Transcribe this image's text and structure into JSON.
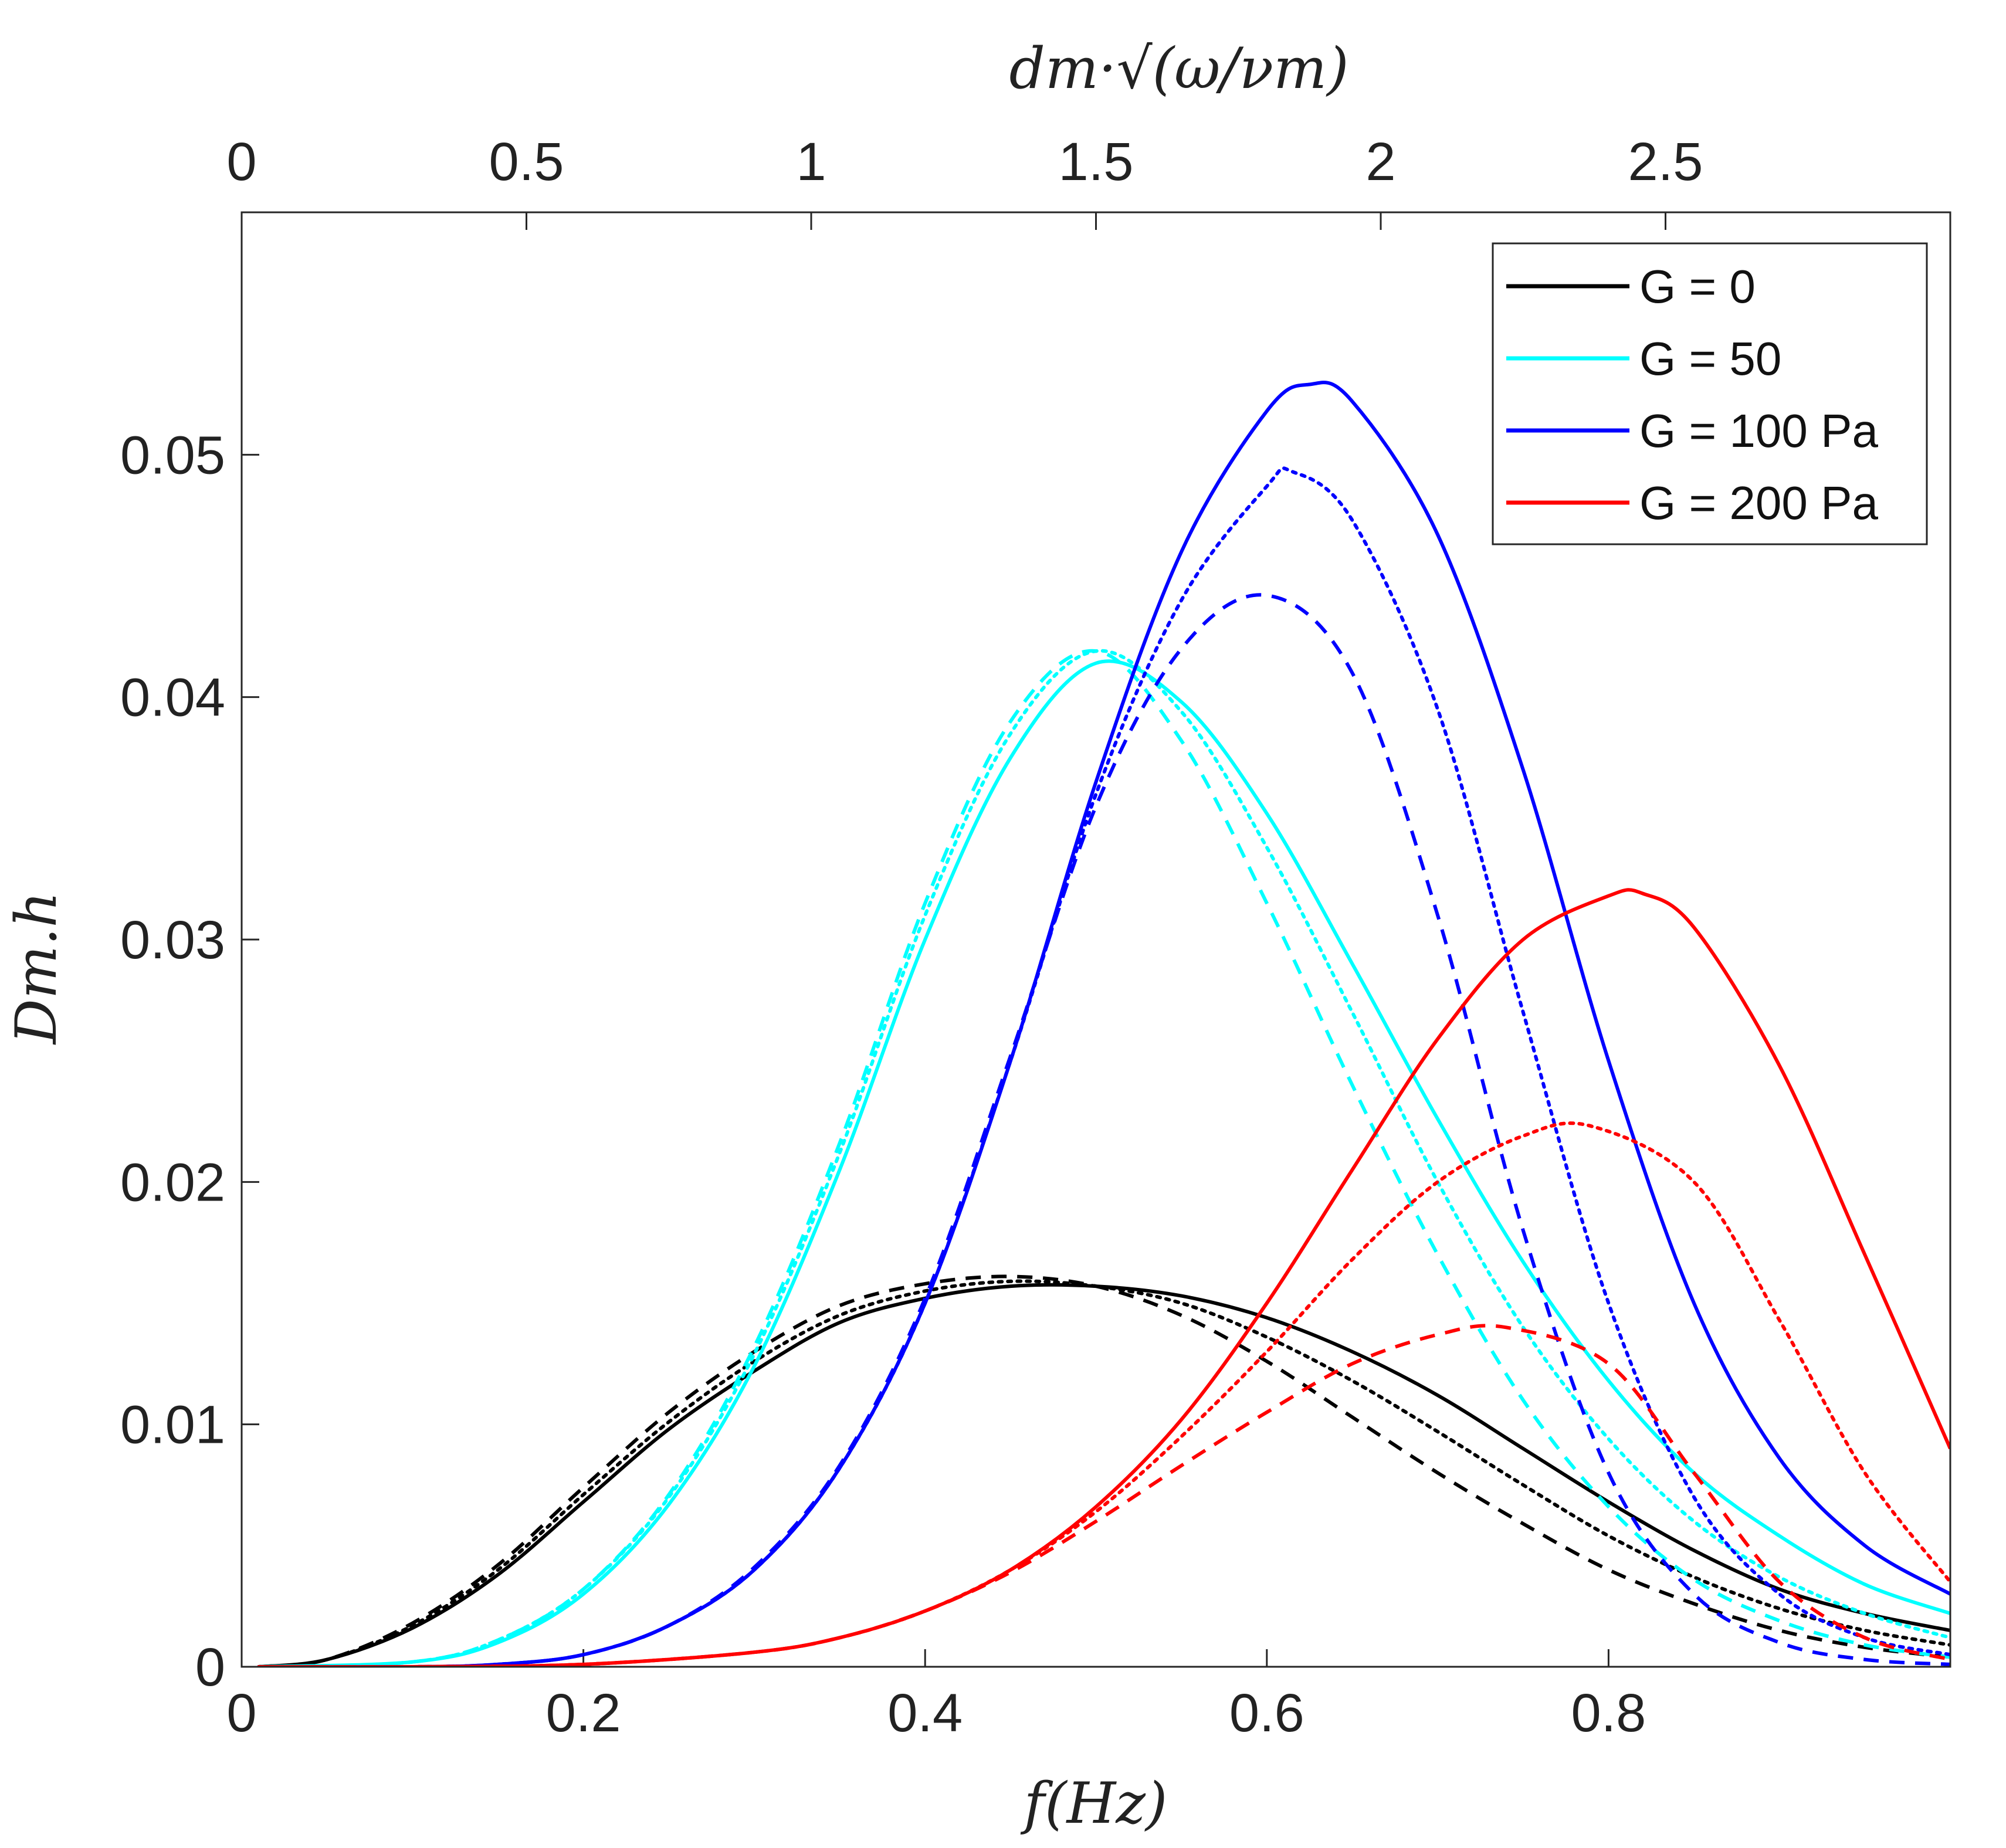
{
  "chart_data": {
    "type": "line",
    "xlabel": "f(Hz)",
    "ylabel": "Dm.h",
    "top_xlabel": "dm·√(ω/νm)",
    "xlim": [
      0,
      1.0
    ],
    "ylim": [
      0,
      0.06
    ],
    "top_xlim": [
      0,
      3.0
    ],
    "x_ticks": [
      "0",
      "0.2",
      "0.4",
      "0.6",
      "0.8"
    ],
    "x_tick_values": [
      0,
      0.2,
      0.4,
      0.6,
      0.8
    ],
    "y_ticks": [
      "0",
      "0.01",
      "0.02",
      "0.03",
      "0.04",
      "0.05"
    ],
    "y_tick_values": [
      0,
      0.01,
      0.02,
      0.03,
      0.04,
      0.05
    ],
    "top_x_ticks": [
      "0",
      "0.5",
      "1",
      "1.5",
      "2",
      "2.5"
    ],
    "top_x_tick_values": [
      0,
      0.5,
      1,
      1.5,
      2,
      2.5
    ],
    "legend": {
      "position": "top-right",
      "entries": [
        {
          "label": "G = 0",
          "color": "#000000"
        },
        {
          "label": "G = 50",
          "color": "#00ffff"
        },
        {
          "label": "G = 100 Pa",
          "color": "#0000ff"
        },
        {
          "label": "G = 200 Pa",
          "color": "#ff0000"
        }
      ]
    },
    "series": [
      {
        "name": "G = 0 solid",
        "color": "#000000",
        "style": "solid",
        "x": [
          0.01,
          0.05,
          0.1,
          0.15,
          0.2,
          0.25,
          0.3,
          0.35,
          0.4,
          0.45,
          0.5,
          0.55,
          0.6,
          0.65,
          0.7,
          0.75,
          0.8,
          0.85,
          0.9,
          0.95,
          1.0
        ],
        "y": [
          0,
          0.0003,
          0.0016,
          0.0038,
          0.0068,
          0.0098,
          0.0122,
          0.0142,
          0.0152,
          0.0157,
          0.0157,
          0.0153,
          0.0144,
          0.013,
          0.0112,
          0.009,
          0.0068,
          0.0048,
          0.0032,
          0.0022,
          0.0015
        ]
      },
      {
        "name": "G = 0 dotted",
        "color": "#000000",
        "style": "dotted",
        "x": [
          0.01,
          0.05,
          0.1,
          0.15,
          0.2,
          0.25,
          0.3,
          0.35,
          0.4,
          0.45,
          0.5,
          0.55,
          0.6,
          0.65,
          0.7,
          0.75,
          0.8,
          0.85,
          0.9,
          0.95,
          1.0
        ],
        "y": [
          0,
          0.0003,
          0.0017,
          0.004,
          0.0071,
          0.0101,
          0.0126,
          0.0145,
          0.0155,
          0.0159,
          0.0157,
          0.015,
          0.0136,
          0.0118,
          0.0097,
          0.0075,
          0.0054,
          0.0037,
          0.0024,
          0.0015,
          0.0009
        ]
      },
      {
        "name": "G = 0 dashed",
        "color": "#000000",
        "style": "dashed",
        "x": [
          0.01,
          0.05,
          0.1,
          0.15,
          0.2,
          0.25,
          0.3,
          0.35,
          0.4,
          0.45,
          0.5,
          0.55,
          0.6,
          0.65,
          0.7,
          0.75,
          0.8,
          0.85,
          0.9,
          0.95,
          1.0
        ],
        "y": [
          0,
          0.0003,
          0.0018,
          0.0042,
          0.0074,
          0.0105,
          0.013,
          0.0149,
          0.0158,
          0.0161,
          0.0157,
          0.0145,
          0.0126,
          0.0103,
          0.008,
          0.0059,
          0.004,
          0.0026,
          0.0015,
          0.0008,
          0.0004
        ]
      },
      {
        "name": "G = 50 solid",
        "color": "#00ffff",
        "style": "solid",
        "x": [
          0.01,
          0.1,
          0.15,
          0.2,
          0.25,
          0.3,
          0.35,
          0.4,
          0.45,
          0.5,
          0.55,
          0.6,
          0.65,
          0.7,
          0.75,
          0.8,
          0.85,
          0.9,
          0.95,
          1.0
        ],
        "y": [
          0,
          0.0002,
          0.001,
          0.003,
          0.0067,
          0.0124,
          0.0205,
          0.03,
          0.0375,
          0.0414,
          0.0398,
          0.0352,
          0.029,
          0.0226,
          0.0167,
          0.0118,
          0.008,
          0.0054,
          0.0034,
          0.0022
        ]
      },
      {
        "name": "G = 50 dotted",
        "color": "#00ffff",
        "style": "dotted",
        "x": [
          0.01,
          0.1,
          0.15,
          0.2,
          0.25,
          0.3,
          0.35,
          0.4,
          0.45,
          0.5,
          0.55,
          0.6,
          0.65,
          0.7,
          0.75,
          0.8,
          0.85,
          0.9,
          0.95,
          1.0
        ],
        "y": [
          0,
          0.0002,
          0.0011,
          0.0032,
          0.007,
          0.0129,
          0.0212,
          0.031,
          0.0385,
          0.0419,
          0.0394,
          0.0338,
          0.027,
          0.02,
          0.014,
          0.0094,
          0.006,
          0.0037,
          0.0022,
          0.0012
        ]
      },
      {
        "name": "G = 50 dashed",
        "color": "#00ffff",
        "style": "dashed",
        "x": [
          0.01,
          0.1,
          0.15,
          0.2,
          0.25,
          0.3,
          0.35,
          0.4,
          0.45,
          0.5,
          0.55,
          0.6,
          0.65,
          0.7,
          0.75,
          0.8,
          0.85,
          0.9,
          0.95,
          1.0
        ],
        "y": [
          0,
          0.0002,
          0.0011,
          0.0032,
          0.0071,
          0.0132,
          0.0216,
          0.0315,
          0.039,
          0.0419,
          0.0382,
          0.0315,
          0.024,
          0.017,
          0.011,
          0.0066,
          0.0036,
          0.0019,
          0.0009,
          0.0004
        ]
      },
      {
        "name": "G = 100 Pa solid",
        "color": "#0000ff",
        "style": "solid",
        "x": [
          0.01,
          0.1,
          0.15,
          0.2,
          0.25,
          0.3,
          0.35,
          0.4,
          0.45,
          0.5,
          0.55,
          0.6,
          0.625,
          0.65,
          0.7,
          0.75,
          0.8,
          0.85,
          0.9,
          0.95,
          1.0
        ],
        "y": [
          0,
          0,
          0.0001,
          0.0005,
          0.0017,
          0.004,
          0.0082,
          0.015,
          0.025,
          0.0365,
          0.046,
          0.0518,
          0.0529,
          0.0522,
          0.0467,
          0.037,
          0.025,
          0.015,
          0.0086,
          0.005,
          0.003
        ]
      },
      {
        "name": "G = 100 Pa dotted",
        "color": "#0000ff",
        "style": "dotted",
        "x": [
          0.01,
          0.1,
          0.15,
          0.2,
          0.25,
          0.3,
          0.35,
          0.4,
          0.45,
          0.5,
          0.55,
          0.6,
          0.615,
          0.65,
          0.7,
          0.75,
          0.8,
          0.85,
          0.9,
          0.95,
          1.0
        ],
        "y": [
          0,
          0,
          0.0001,
          0.0005,
          0.0017,
          0.004,
          0.0082,
          0.015,
          0.025,
          0.036,
          0.044,
          0.0487,
          0.0493,
          0.0473,
          0.0395,
          0.027,
          0.015,
          0.007,
          0.003,
          0.0012,
          0.0005
        ]
      },
      {
        "name": "G = 100 Pa dashed",
        "color": "#0000ff",
        "style": "dashed",
        "x": [
          0.01,
          0.1,
          0.15,
          0.2,
          0.25,
          0.3,
          0.35,
          0.4,
          0.45,
          0.5,
          0.55,
          0.6,
          0.65,
          0.7,
          0.75,
          0.8,
          0.85,
          0.9,
          0.95,
          1.0
        ],
        "y": [
          0,
          0,
          0.0001,
          0.0005,
          0.0017,
          0.0041,
          0.0083,
          0.0152,
          0.0252,
          0.0355,
          0.042,
          0.0442,
          0.041,
          0.031,
          0.018,
          0.008,
          0.003,
          0.001,
          0.0003,
          0.0001
        ]
      },
      {
        "name": "G = 200 Pa solid",
        "color": "#ff0000",
        "style": "solid",
        "x": [
          0.01,
          0.1,
          0.2,
          0.3,
          0.35,
          0.4,
          0.45,
          0.5,
          0.55,
          0.6,
          0.65,
          0.7,
          0.75,
          0.8,
          0.82,
          0.85,
          0.9,
          0.95,
          1.0
        ],
        "y": [
          0,
          0,
          0.0001,
          0.0006,
          0.0012,
          0.0023,
          0.004,
          0.0066,
          0.0102,
          0.015,
          0.0205,
          0.0259,
          0.03,
          0.0318,
          0.0319,
          0.0305,
          0.0248,
          0.017,
          0.009
        ]
      },
      {
        "name": "G = 200 Pa dotted",
        "color": "#ff0000",
        "style": "dotted",
        "x": [
          0.01,
          0.1,
          0.2,
          0.3,
          0.35,
          0.4,
          0.45,
          0.5,
          0.55,
          0.6,
          0.65,
          0.7,
          0.75,
          0.79,
          0.85,
          0.9,
          0.95,
          1.0
        ],
        "y": [
          0,
          0,
          0.0001,
          0.0006,
          0.0012,
          0.0023,
          0.004,
          0.0064,
          0.0095,
          0.013,
          0.0168,
          0.02,
          0.0219,
          0.0223,
          0.02,
          0.0143,
          0.008,
          0.0035
        ]
      },
      {
        "name": "G = 200 Pa dashed",
        "color": "#ff0000",
        "style": "dashed",
        "x": [
          0.01,
          0.1,
          0.2,
          0.3,
          0.35,
          0.4,
          0.45,
          0.5,
          0.55,
          0.6,
          0.65,
          0.7,
          0.74,
          0.8,
          0.85,
          0.9,
          0.95,
          1.0
        ],
        "y": [
          0,
          0,
          0.0001,
          0.0006,
          0.0012,
          0.0023,
          0.0039,
          0.006,
          0.0083,
          0.0105,
          0.0125,
          0.0137,
          0.014,
          0.0125,
          0.008,
          0.0035,
          0.0012,
          0.0003
        ]
      }
    ]
  }
}
